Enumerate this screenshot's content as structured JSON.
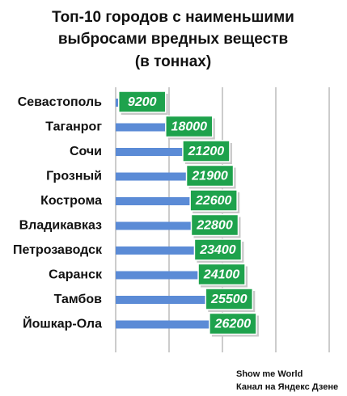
{
  "chart_data": {
    "type": "barh",
    "title": [
      "Топ-10 городов с наименьшими",
      "выбросами вредных веществ",
      "(в тоннах)"
    ],
    "categories": [
      "Севастополь",
      "Таганрог",
      "Сочи",
      "Грозный",
      "Кострома",
      "Владикавказ",
      "Петрозаводск",
      "Саранск",
      "Тамбов",
      "Йошкар-Ола"
    ],
    "values": [
      9200,
      18000,
      21200,
      21900,
      22600,
      22800,
      23400,
      24100,
      25500,
      26200
    ],
    "color": "#5b8bd6",
    "label_color": "#1ea24c",
    "xlim": [
      0,
      40000
    ],
    "xticks": [
      0,
      10000,
      20000,
      30000,
      40000
    ],
    "grid": true,
    "footer": [
      "Show me World",
      "Канал на Яндекс Дзене"
    ]
  }
}
